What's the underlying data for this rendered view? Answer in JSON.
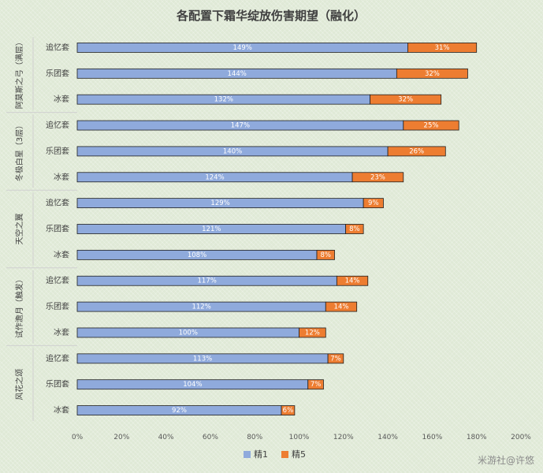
{
  "chart_data": {
    "type": "bar",
    "orientation": "horizontal",
    "stacked": true,
    "title": "各配置下霜华绽放伤害期望（融化）",
    "groups": [
      {
        "name": "阿莫斯之弓（满层）",
        "categories": [
          "追忆套",
          "乐团套",
          "冰套"
        ]
      },
      {
        "name": "冬极白星（3层）",
        "categories": [
          "追忆套",
          "乐团套",
          "冰套"
        ]
      },
      {
        "name": "天空之翼",
        "categories": [
          "追忆套",
          "乐团套",
          "冰套"
        ]
      },
      {
        "name": "试作澹月（触发）",
        "categories": [
          "追忆套",
          "乐团套",
          "冰套"
        ]
      },
      {
        "name": "风花之颂",
        "categories": [
          "追忆套",
          "乐团套",
          "冰套"
        ]
      }
    ],
    "series": [
      {
        "name": "精1",
        "color": "#8faadc",
        "values": [
          149,
          144,
          132,
          147,
          140,
          124,
          129,
          121,
          108,
          117,
          112,
          100,
          113,
          104,
          92
        ]
      },
      {
        "name": "精5",
        "color": "#ed7d31",
        "values": [
          31,
          32,
          32,
          25,
          26,
          23,
          9,
          8,
          8,
          14,
          14,
          12,
          7,
          7,
          6
        ]
      }
    ],
    "value_unit": "%",
    "xlim": [
      0,
      200
    ],
    "xticks": [
      "0%",
      "20%",
      "40%",
      "60%",
      "80%",
      "100%",
      "120%",
      "140%",
      "160%",
      "180%",
      "200%"
    ],
    "grid": false,
    "legend_position": "bottom"
  },
  "watermark": "米游社@许悠"
}
